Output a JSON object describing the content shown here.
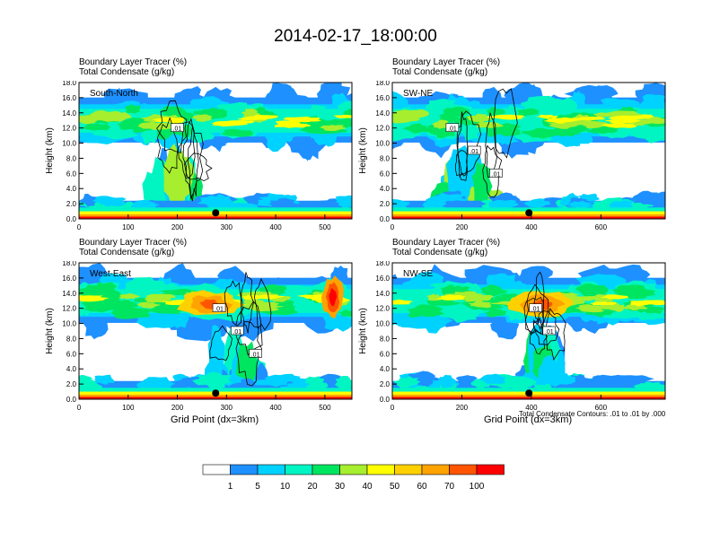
{
  "title": "2014-02-17_18:00:00",
  "chart_data": [
    {
      "type": "heatmap",
      "name": "South-North",
      "subtitle1": "Boundary Layer Tracer   (%)",
      "subtitle2": "Total Condensate   (g/kg)",
      "ylabel": "Height (km)",
      "xlabel": "",
      "xlim": [
        0,
        555
      ],
      "ylim": [
        0,
        18
      ],
      "xticks": [
        0,
        100,
        200,
        300,
        400,
        500
      ],
      "yticks": [
        0,
        2,
        4,
        6,
        8,
        10,
        12,
        14,
        16,
        18
      ],
      "contour_labels": [
        ".01"
      ],
      "marker_x": 278
    },
    {
      "type": "heatmap",
      "name": "SW-NE",
      "subtitle1": "Boundary Layer Tracer   (%)",
      "subtitle2": "Total Condensate   (g/kg)",
      "ylabel": "Height (km)",
      "xlabel": "",
      "xlim": [
        0,
        785
      ],
      "ylim": [
        0,
        18
      ],
      "xticks": [
        0,
        200,
        400,
        600
      ],
      "yticks": [
        0,
        2,
        4,
        6,
        8,
        10,
        12,
        14,
        16,
        18
      ],
      "contour_labels": [
        ".01",
        ".01",
        ".01"
      ],
      "marker_x": 393
    },
    {
      "type": "heatmap",
      "name": "West-East",
      "subtitle1": "Boundary Layer Tracer   (%)",
      "subtitle2": "Total Condensate   (g/kg)",
      "ylabel": "Height (km)",
      "xlabel": "Grid Point (dx=3km)",
      "xlim": [
        0,
        555
      ],
      "ylim": [
        0,
        18
      ],
      "xticks": [
        0,
        100,
        200,
        300,
        400,
        500
      ],
      "yticks": [
        0,
        2,
        4,
        6,
        8,
        10,
        12,
        14,
        16,
        18
      ],
      "contour_labels": [
        ".01",
        ".01",
        ".01"
      ],
      "marker_x": 278
    },
    {
      "type": "heatmap",
      "name": "NW-SE",
      "subtitle1": "Boundary Layer Tracer   (%)",
      "subtitle2": "Total Condensate   (g/kg)",
      "ylabel": "Height (km)",
      "xlabel": "Grid Point (dx=3km)",
      "xlim": [
        0,
        785
      ],
      "ylim": [
        0,
        18
      ],
      "xticks": [
        0,
        200,
        400,
        600
      ],
      "yticks": [
        0,
        2,
        4,
        6,
        8,
        10,
        12,
        14,
        16,
        18
      ],
      "contour_labels": [
        ".01",
        ".01"
      ],
      "marker_x": 393
    }
  ],
  "contour_note": "Total Condensate Contours: .01 to .01 by .000",
  "colorbar": {
    "labels": [
      "1",
      "5",
      "10",
      "20",
      "30",
      "40",
      "50",
      "60",
      "70",
      "100"
    ],
    "colors": [
      "#ffffff",
      "#1e90ff",
      "#00d2ff",
      "#00f5c3",
      "#00e560",
      "#a6ee2e",
      "#ffff00",
      "#ffd000",
      "#ffa300",
      "#ff5500",
      "#ff0000"
    ]
  }
}
